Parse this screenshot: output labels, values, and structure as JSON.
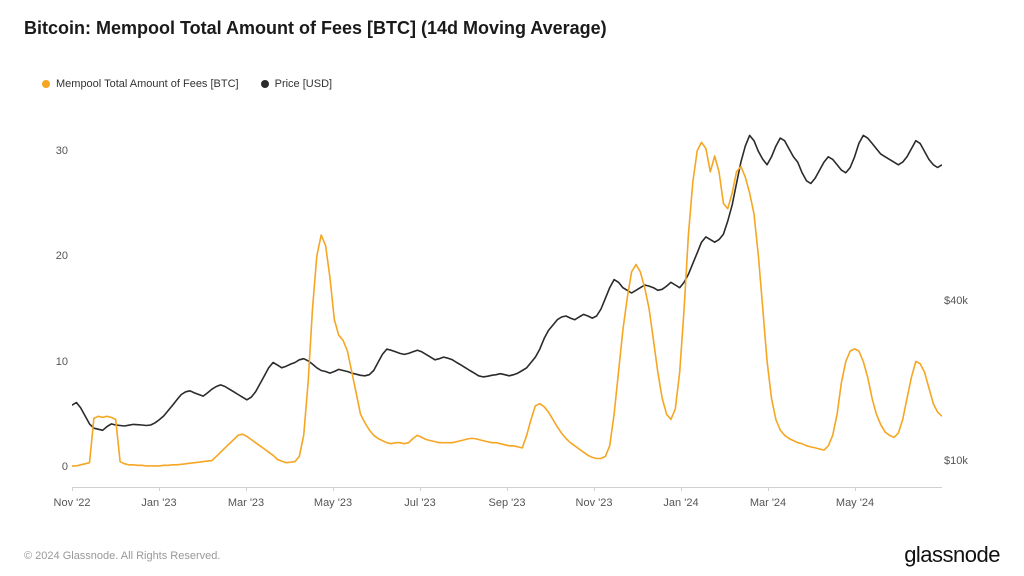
{
  "title": "Bitcoin: Mempool Total Amount of Fees [BTC] (14d Moving Average)",
  "legend": {
    "series1": {
      "label": "Mempool Total Amount of Fees [BTC]",
      "color": "#f5a623"
    },
    "series2": {
      "label": "Price [USD]",
      "color": "#2b2b2b"
    }
  },
  "footer": {
    "copyright": "© 2024 Glassnode. All Rights Reserved.",
    "brand": "glassnode"
  },
  "chart": {
    "type": "line-dual-axis",
    "background_color": "#ffffff",
    "grid_color": "#d0d0d0",
    "axis_font_size": 11,
    "axis_text_color": "#555",
    "title_fontsize": 18,
    "title_fontweight": 600,
    "title_color": "#1a1a1a",
    "line_width": 1.6,
    "x": {
      "labels": [
        "Nov '22",
        "Jan '23",
        "Mar '23",
        "May '23",
        "Jul '23",
        "Sep '23",
        "Nov '23",
        "Jan '24",
        "Mar '24",
        "May '24"
      ],
      "n_points": 200
    },
    "y_left": {
      "min": -2,
      "max": 35,
      "ticks": [
        {
          "value": 0,
          "label": "0"
        },
        {
          "value": 10,
          "label": "10"
        },
        {
          "value": 20,
          "label": "20"
        },
        {
          "value": 30,
          "label": "30"
        }
      ]
    },
    "y_right": {
      "min": 5000,
      "max": 78000,
      "ticks": [
        {
          "value": 10000,
          "label": "$10k"
        },
        {
          "value": 40000,
          "label": "$40k"
        }
      ]
    },
    "series_fees": {
      "color": "#f5a623",
      "values": [
        0.1,
        0.1,
        0.2,
        0.3,
        0.4,
        4.6,
        4.8,
        4.7,
        4.8,
        4.7,
        4.5,
        0.5,
        0.3,
        0.2,
        0.2,
        0.15,
        0.15,
        0.1,
        0.1,
        0.1,
        0.1,
        0.15,
        0.15,
        0.2,
        0.2,
        0.25,
        0.3,
        0.35,
        0.4,
        0.45,
        0.5,
        0.55,
        0.6,
        1.0,
        1.4,
        1.8,
        2.2,
        2.6,
        3.0,
        3.1,
        2.9,
        2.6,
        2.3,
        2.0,
        1.7,
        1.4,
        1.1,
        0.7,
        0.55,
        0.4,
        0.45,
        0.5,
        1.0,
        3.0,
        8.0,
        15.0,
        20.0,
        22.0,
        21.0,
        18.0,
        14.0,
        12.5,
        12.0,
        11.0,
        9.0,
        7.0,
        5.0,
        4.2,
        3.5,
        3.0,
        2.7,
        2.5,
        2.3,
        2.2,
        2.3,
        2.3,
        2.2,
        2.3,
        2.7,
        3.0,
        2.8,
        2.6,
        2.5,
        2.4,
        2.3,
        2.3,
        2.3,
        2.3,
        2.4,
        2.5,
        2.6,
        2.7,
        2.7,
        2.6,
        2.5,
        2.4,
        2.3,
        2.3,
        2.2,
        2.1,
        2.0,
        2.0,
        1.9,
        1.8,
        3.0,
        4.5,
        5.8,
        6.0,
        5.7,
        5.2,
        4.5,
        3.8,
        3.2,
        2.7,
        2.3,
        2.0,
        1.7,
        1.4,
        1.1,
        0.9,
        0.8,
        0.8,
        1.0,
        2.0,
        5.0,
        9.0,
        13.0,
        16.0,
        18.5,
        19.2,
        18.5,
        17.0,
        15.0,
        12.0,
        9.0,
        6.5,
        5.0,
        4.5,
        5.5,
        9.0,
        15.0,
        22.0,
        27.0,
        30.0,
        30.8,
        30.2,
        28.0,
        29.5,
        28.0,
        25.0,
        24.5,
        26.0,
        28.0,
        28.5,
        27.5,
        26.0,
        24.0,
        20.0,
        15.0,
        10.0,
        6.5,
        4.5,
        3.5,
        3.0,
        2.7,
        2.5,
        2.3,
        2.2,
        2.0,
        1.9,
        1.8,
        1.7,
        1.6,
        2.0,
        3.0,
        5.0,
        8.0,
        10.0,
        11.0,
        11.2,
        11.0,
        10.0,
        8.5,
        6.5,
        5.0,
        4.0,
        3.3,
        3.0,
        2.8,
        3.2,
        4.5,
        6.5,
        8.5,
        10.0,
        9.8,
        9.0,
        7.5,
        6.0,
        5.2,
        4.8
      ]
    },
    "series_price": {
      "color": "#2b2b2b",
      "values": [
        20500,
        21000,
        20000,
        18500,
        17000,
        16200,
        16000,
        15800,
        16500,
        17000,
        16800,
        16700,
        16600,
        16750,
        16900,
        16850,
        16800,
        16700,
        16800,
        17200,
        17800,
        18500,
        19500,
        20500,
        21500,
        22500,
        23000,
        23200,
        22800,
        22500,
        22200,
        22800,
        23500,
        24000,
        24300,
        24000,
        23500,
        23000,
        22500,
        22000,
        21500,
        22000,
        23000,
        24500,
        26000,
        27500,
        28500,
        28000,
        27500,
        27800,
        28200,
        28500,
        29000,
        29200,
        28800,
        28200,
        27500,
        27000,
        26800,
        26500,
        26800,
        27200,
        27000,
        26800,
        26500,
        26300,
        26100,
        26000,
        26200,
        27000,
        28500,
        30000,
        31000,
        30800,
        30500,
        30200,
        30000,
        30200,
        30500,
        30800,
        30500,
        30000,
        29500,
        29000,
        29200,
        29500,
        29300,
        29000,
        28500,
        28000,
        27500,
        27000,
        26500,
        26000,
        25800,
        25900,
        26100,
        26200,
        26400,
        26200,
        26000,
        26200,
        26500,
        27000,
        27500,
        28500,
        29500,
        31000,
        33000,
        34500,
        35500,
        36500,
        37000,
        37200,
        36800,
        36500,
        37000,
        37500,
        37200,
        36800,
        37200,
        38500,
        40500,
        42500,
        44000,
        43500,
        42500,
        42000,
        41500,
        42000,
        42500,
        43000,
        42800,
        42500,
        42000,
        42200,
        42800,
        43500,
        43000,
        42500,
        43500,
        45000,
        47000,
        49000,
        51000,
        52000,
        51500,
        51000,
        51500,
        52500,
        55000,
        58000,
        62000,
        66000,
        69000,
        71000,
        70000,
        68000,
        66500,
        65500,
        67000,
        69000,
        70500,
        70000,
        68500,
        67000,
        66000,
        64000,
        62500,
        62000,
        63000,
        64500,
        66000,
        67000,
        66500,
        65500,
        64500,
        64000,
        65000,
        67000,
        69500,
        71000,
        70500,
        69500,
        68500,
        67500,
        67000,
        66500,
        66000,
        65500,
        66000,
        67000,
        68500,
        70000,
        69500,
        68000,
        66500,
        65500,
        65000,
        65500
      ]
    }
  }
}
